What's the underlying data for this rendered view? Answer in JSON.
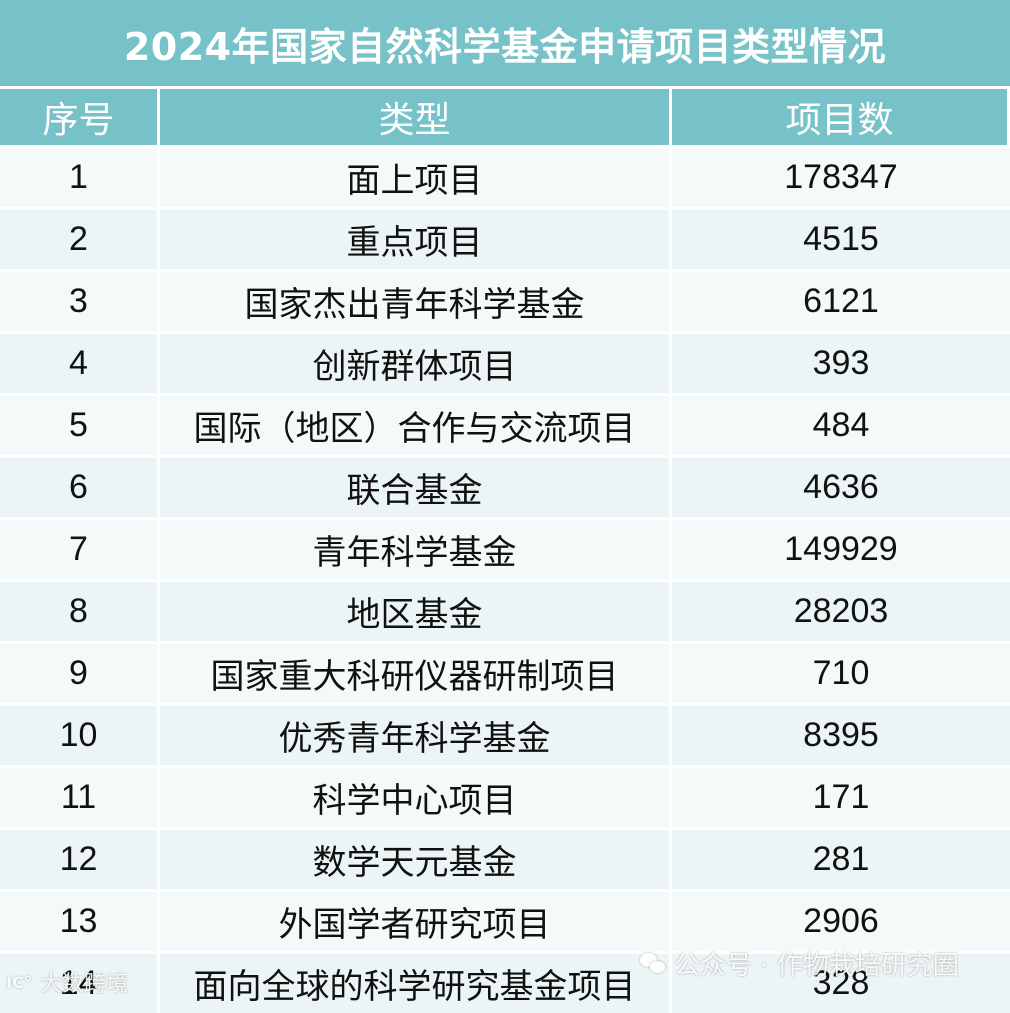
{
  "title": "2024年国家自然科学基金申请项目类型情况",
  "headers": {
    "index": "序号",
    "type": "类型",
    "count": "项目数"
  },
  "rows": [
    {
      "index": "1",
      "type": "面上项目",
      "count": "178347"
    },
    {
      "index": "2",
      "type": "重点项目",
      "count": "4515"
    },
    {
      "index": "3",
      "type": "国家杰出青年科学基金",
      "count": "6121"
    },
    {
      "index": "4",
      "type": "创新群体项目",
      "count": "393"
    },
    {
      "index": "5",
      "type": "国际（地区）合作与交流项目",
      "count": "484"
    },
    {
      "index": "6",
      "type": "联合基金",
      "count": "4636"
    },
    {
      "index": "7",
      "type": "青年科学基金",
      "count": "149929"
    },
    {
      "index": "8",
      "type": "地区基金",
      "count": "28203"
    },
    {
      "index": "9",
      "type": "国家重大科研仪器研制项目",
      "count": "710"
    },
    {
      "index": "10",
      "type": "优秀青年科学基金",
      "count": "8395"
    },
    {
      "index": "11",
      "type": "科学中心项目",
      "count": "171"
    },
    {
      "index": "12",
      "type": "数学天元基金",
      "count": "281"
    },
    {
      "index": "13",
      "type": "外国学者研究项目",
      "count": "2906"
    },
    {
      "index": "14",
      "type": "面向全球的科学研究基金项目",
      "count": "328"
    }
  ],
  "watermarks": {
    "left_icon": "IC°",
    "left_text": "大数跨境",
    "right_text": "公众号 · 作物栽培研究圈"
  },
  "colors": {
    "header_bg": "#76c2c8",
    "header_text": "#ffffff",
    "row_bg": "#e8f2f3",
    "row_alt_bg": "#f4f9f9"
  }
}
